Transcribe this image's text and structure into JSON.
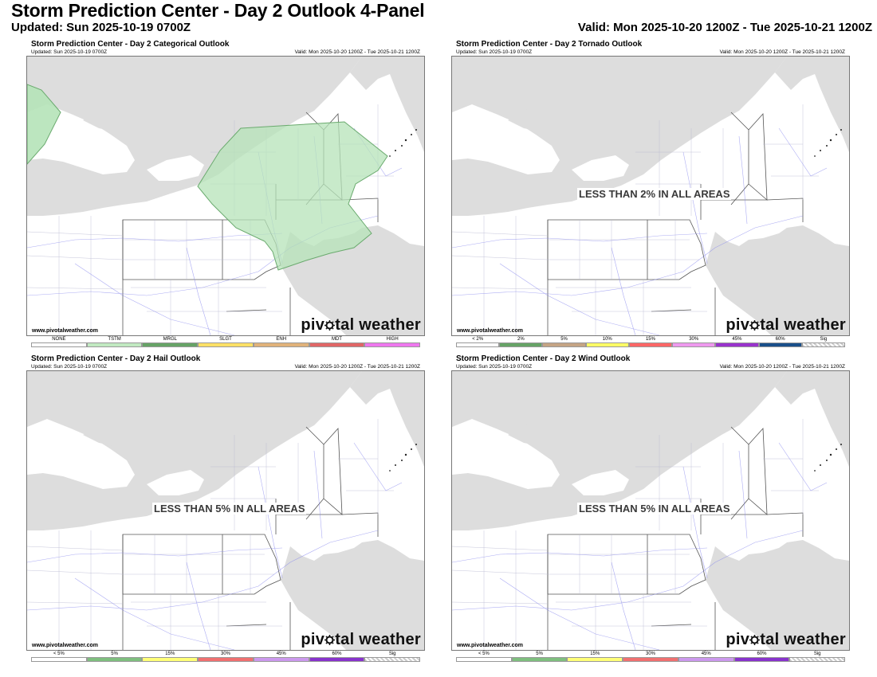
{
  "header": {
    "title": "Storm Prediction Center - Day 2 Outlook 4-Panel",
    "updated": "Updated: Sun 2025-10-19 0700Z",
    "valid": "Valid: Mon 2025-10-20 1200Z - Tue 2025-10-21 1200Z"
  },
  "panels": [
    {
      "title": "Storm Prediction Center - Day 2 Categorical Outlook",
      "updated": "Updated: Sun 2025-10-19 0700Z",
      "valid": "Valid: Mon 2025-10-20 1200Z - Tue 2025-10-21 1200Z",
      "watermark": "www.pivotalweather.com",
      "brand": "pivotal weather",
      "message": "",
      "legend": [
        {
          "label": "NONE",
          "color": "#ffffff"
        },
        {
          "label": "TSTM",
          "color": "#c1e9c1"
        },
        {
          "label": "MRGL",
          "color": "#66a366"
        },
        {
          "label": "SLGT",
          "color": "#ffe066"
        },
        {
          "label": "ENH",
          "color": "#e0b27a"
        },
        {
          "label": "MDT",
          "color": "#e06666"
        },
        {
          "label": "HIGH",
          "color": "#ee77ee"
        }
      ]
    },
    {
      "title": "Storm Prediction Center - Day 2 Tornado Outlook",
      "updated": "Updated: Sun 2025-10-19 0700Z",
      "valid": "Valid: Mon 2025-10-20 1200Z - Tue 2025-10-21 1200Z",
      "watermark": "www.pivotalweather.com",
      "brand": "pivotal weather",
      "message": "LESS THAN 2% IN ALL AREAS",
      "legend": [
        {
          "label": "< 2%",
          "color": "#ffffff"
        },
        {
          "label": "2%",
          "color": "#66a366"
        },
        {
          "label": "5%",
          "color": "#c4a484"
        },
        {
          "label": "10%",
          "color": "#ffff66"
        },
        {
          "label": "15%",
          "color": "#ff6666"
        },
        {
          "label": "30%",
          "color": "#ee99ee"
        },
        {
          "label": "45%",
          "color": "#9933cc"
        },
        {
          "label": "60%",
          "color": "#1a4f8a"
        },
        {
          "label": "Sig",
          "color": "sig"
        }
      ]
    },
    {
      "title": "Storm Prediction Center - Day 2 Hail Outlook",
      "updated": "Updated: Sun 2025-10-19 0700Z",
      "valid": "Valid: Mon 2025-10-20 1200Z - Tue 2025-10-21 1200Z",
      "watermark": "www.pivotalweather.com",
      "brand": "pivotal weather",
      "message": "LESS THAN 5% IN ALL AREAS",
      "legend": [
        {
          "label": "< 5%",
          "color": "#ffffff"
        },
        {
          "label": "5%",
          "color": "#7fbf7f"
        },
        {
          "label": "15%",
          "color": "#ffff77"
        },
        {
          "label": "30%",
          "color": "#f07070"
        },
        {
          "label": "45%",
          "color": "#cc99ee"
        },
        {
          "label": "60%",
          "color": "#8833cc"
        },
        {
          "label": "Sig",
          "color": "sig"
        }
      ]
    },
    {
      "title": "Storm Prediction Center - Day 2 Wind Outlook",
      "updated": "Updated: Sun 2025-10-19 0700Z",
      "valid": "Valid: Mon 2025-10-20 1200Z - Tue 2025-10-21 1200Z",
      "watermark": "www.pivotalweather.com",
      "brand": "pivotal weather",
      "message": "LESS THAN 5% IN ALL AREAS",
      "legend": [
        {
          "label": "< 5%",
          "color": "#ffffff"
        },
        {
          "label": "5%",
          "color": "#7fbf7f"
        },
        {
          "label": "15%",
          "color": "#ffff77"
        },
        {
          "label": "30%",
          "color": "#f07070"
        },
        {
          "label": "45%",
          "color": "#cc99ee"
        },
        {
          "label": "60%",
          "color": "#8833cc"
        },
        {
          "label": "Sig",
          "color": "sig"
        }
      ]
    }
  ],
  "colors": {
    "water": "#dddddd",
    "land": "#ffffff",
    "tstm": "#b5e3b8",
    "roads": "#8a8aee"
  }
}
